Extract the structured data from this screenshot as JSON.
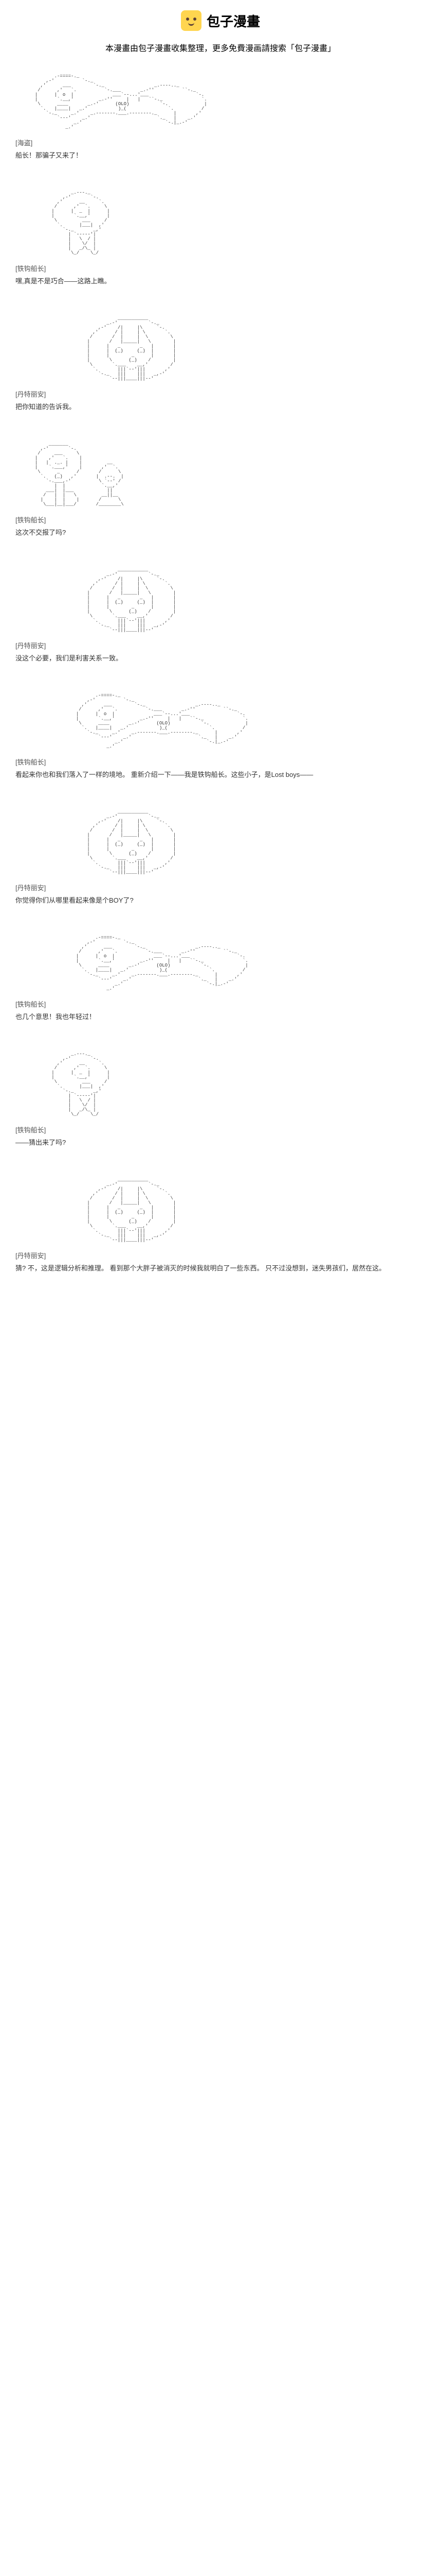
{
  "header": {
    "brand": "包子漫畫",
    "subtitle": "本漫畫由包子漫畫收集整理，更多免費漫画請搜索「包子漫畫」"
  },
  "colors": {
    "logo_bg": "#ffd54f",
    "logo_face": "#5d4037",
    "text": "#333333",
    "speaker": "#555555",
    "bg": "#ffffff"
  },
  "ascii_blocks": {
    "captain_hat_wide": "              .-====-._                                          \n           ,-'          `-._                                       \n         ,'      ___        `-._                  _.----.._        \n        /      ,'   `.          `-.___       _.-''          ``-._   \n       |      |  o  |              ___`--...'___                 `-. \n       |       `.__,'         _.-''     |   |   ``-._              `.\n        \\      ____       _.-'      (OLO)           `-.             |\n         `.   |____|   _.'           )_(               `.          /\n           `-._     _.'    _.-------.___.--------._      |       ,' \n               `---'    _.'                        `._   |    _.'   \n                     _.'                              `-.|_.-'      \n                  _.'                                               ",
    "captain_profile": "                    _.---._                        \n                 ,-'       `-.                     \n               ,'      __     `.                   \n              /      ,'  `.     \\                  \n             |      |  _  |      |                 \n             |       `.__,'      |                 \n              \\         ___     /                  \n               `.      |___|  ,'                   \n                 `-._       _,'                    \n                   | `-----'|                      \n                   |   \\  / |                      \n                   |    \\/  |                      \n                   |   _/\\_ |                      \n                    \\_/    \\_/                     ",
    "girl_face": "                      ___________                          \n                  _.-'           `-._                       \n               ,-'    /|     |\\     `-.                     \n             ,'      / |     | \\       `.                   \n            /       /  |     |  \\        \\                  \n           |       /   |_____|   \\        |                 \n           |      |   _       _   |       |                 \n           |      |  (_)     (_)  |       |                 \n           |      |        _      |       |                 \n           |       \\      (_)    /        |                 \n            \\       `.___    __,'        /                  \n             `.       |||`--'|||       ,'                   \n               `-._   |||    |||   _,-'                     \n                   `--|||____|||--'                         ",
    "man_crouch": "            _______                                \n         ,-'       `-.                             \n        /     ___     \\                            \n       |    ,'   `.    |                           \n       |   |  ._. |    |         __                \n       |    `.___,'    |       ,'  `.              \n        \\      _      /       /      \\             \n         `.   (_)   ,'       |  .--.  |            \n           `-.___,-'          \\ `--' /             \n              |  |             `.__,'              \n           ___|  |___            ||                \n          /   |  |   \\         __||__              \n         |    |  |    |       /      \\             \n          \\___|__|___/       /________\\            "
  },
  "panels": [
    {
      "ascii": "captain_hat_wide",
      "indent": false,
      "speaker": "[海盗]",
      "dialogue": "船长！那骗子又来了！"
    },
    {
      "ascii": "captain_profile",
      "indent": false,
      "speaker": "[铁钩船长]",
      "dialogue": "嘿,真是不是巧合——这路上瞧。"
    },
    {
      "ascii": "girl_face",
      "indent": true,
      "speaker": "[丹特丽安]",
      "dialogue": "把你知道的告诉我。"
    },
    {
      "ascii": "man_crouch",
      "indent": false,
      "speaker": "[铁钩船长]",
      "dialogue": "这次不交报了吗?"
    },
    {
      "ascii": "girl_face",
      "indent": true,
      "speaker": "[丹特丽安]",
      "dialogue": "没这个必要，我们是利害关系一致。"
    },
    {
      "ascii": "captain_hat_wide",
      "indent": true,
      "speaker": "[铁钩船长]",
      "dialogue": "看起来你也和我们落入了一样的境地。\n重新介绍一下——我是铁钩船长。这些小子，是Lost boys——"
    },
    {
      "ascii": "girl_face",
      "indent": true,
      "speaker": "[丹特丽安]",
      "dialogue": "你觉得你们从哪里看起来像是个BOY了?"
    },
    {
      "ascii": "captain_hat_wide",
      "indent": true,
      "speaker": "[铁钩船长]",
      "dialogue": "也几个意思！我也年轻过！"
    },
    {
      "ascii": "captain_profile",
      "indent": false,
      "speaker": "[铁钩船长]",
      "dialogue": "——猜出来了吗?"
    },
    {
      "ascii": "girl_face",
      "indent": true,
      "speaker": "[丹特丽安]",
      "dialogue": "猜? 不，这是逻辑分析和推理。\n看到那个大胖子被消灭的时候我就明白了一些东西。\n只不过没想到，迷失男孩们，居然在这。"
    }
  ]
}
